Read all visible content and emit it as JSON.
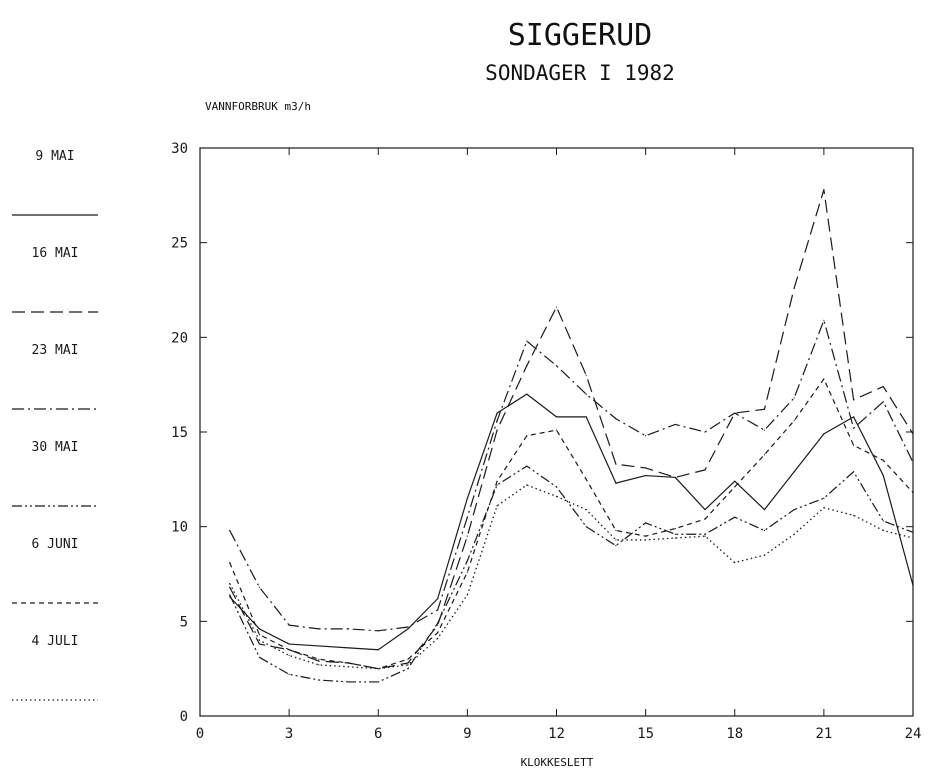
{
  "chart_data": {
    "type": "line",
    "title": "SIGGERUD",
    "subtitle": "SONDAGER I 1982",
    "ylabel": "VANNFORBRUK m3/h",
    "xlabel": "KLOKKESLETT",
    "xlim": [
      0,
      24
    ],
    "ylim": [
      0,
      30
    ],
    "xticks": [
      0,
      3,
      6,
      9,
      12,
      15,
      18,
      21,
      24
    ],
    "yticks": [
      0,
      5,
      10,
      15,
      20,
      25,
      30
    ],
    "x": [
      1,
      2,
      3,
      4,
      5,
      6,
      7,
      8,
      9,
      10,
      11,
      12,
      13,
      14,
      15,
      16,
      17,
      18,
      19,
      20,
      21,
      22,
      23,
      24
    ],
    "legend_position": "left",
    "series": [
      {
        "name": "9 MAI",
        "style": "solid",
        "values": [
          6.3,
          4.6,
          3.8,
          3.7,
          3.6,
          3.5,
          4.6,
          6.2,
          11.5,
          16.0,
          17.0,
          15.8,
          15.8,
          12.3,
          12.7,
          12.6,
          10.9,
          12.4,
          10.9,
          12.9,
          14.9,
          15.8,
          12.7,
          6.9
        ]
      },
      {
        "name": "16 MAI",
        "style": "longdash",
        "values": [
          6.8,
          3.8,
          3.5,
          2.9,
          2.8,
          2.5,
          2.8,
          4.8,
          9.5,
          15.1,
          18.5,
          21.6,
          18.0,
          13.3,
          13.1,
          12.6,
          13.0,
          16.0,
          16.2,
          22.6,
          27.8,
          16.7,
          17.4,
          14.9
        ]
      },
      {
        "name": "23 MAI",
        "style": "dashdot",
        "values": [
          9.8,
          6.8,
          4.8,
          4.6,
          4.6,
          4.5,
          4.7,
          5.6,
          10.5,
          15.6,
          19.8,
          18.5,
          17.0,
          15.7,
          14.8,
          15.4,
          15.0,
          16.0,
          15.1,
          16.8,
          20.9,
          15.2,
          16.6,
          13.4
        ]
      },
      {
        "name": "30 MAI",
        "style": "dashdotdot",
        "values": [
          6.4,
          3.1,
          2.2,
          1.9,
          1.8,
          1.8,
          2.5,
          4.9,
          8.2,
          12.2,
          13.2,
          12.1,
          10.0,
          9.0,
          10.2,
          9.6,
          9.6,
          10.5,
          9.8,
          10.9,
          11.5,
          12.9,
          10.3,
          9.7
        ]
      },
      {
        "name": "6 JUNI",
        "style": "shortdash",
        "values": [
          8.1,
          4.3,
          3.5,
          3.0,
          2.8,
          2.5,
          3.0,
          4.4,
          7.6,
          12.4,
          14.8,
          15.1,
          12.5,
          9.8,
          9.5,
          9.9,
          10.4,
          12.1,
          13.8,
          15.6,
          17.8,
          14.3,
          13.5,
          11.8
        ]
      },
      {
        "name": "4 JULI",
        "style": "dotted",
        "values": [
          7.0,
          4.0,
          3.2,
          2.7,
          2.6,
          2.5,
          2.7,
          4.1,
          6.4,
          11.1,
          12.2,
          11.6,
          10.9,
          9.3,
          9.3,
          9.4,
          9.5,
          8.1,
          8.5,
          9.6,
          11.0,
          10.6,
          9.8,
          9.4
        ]
      }
    ]
  },
  "colors": {
    "line": "#1a1a1a",
    "background": "#ffffff"
  }
}
